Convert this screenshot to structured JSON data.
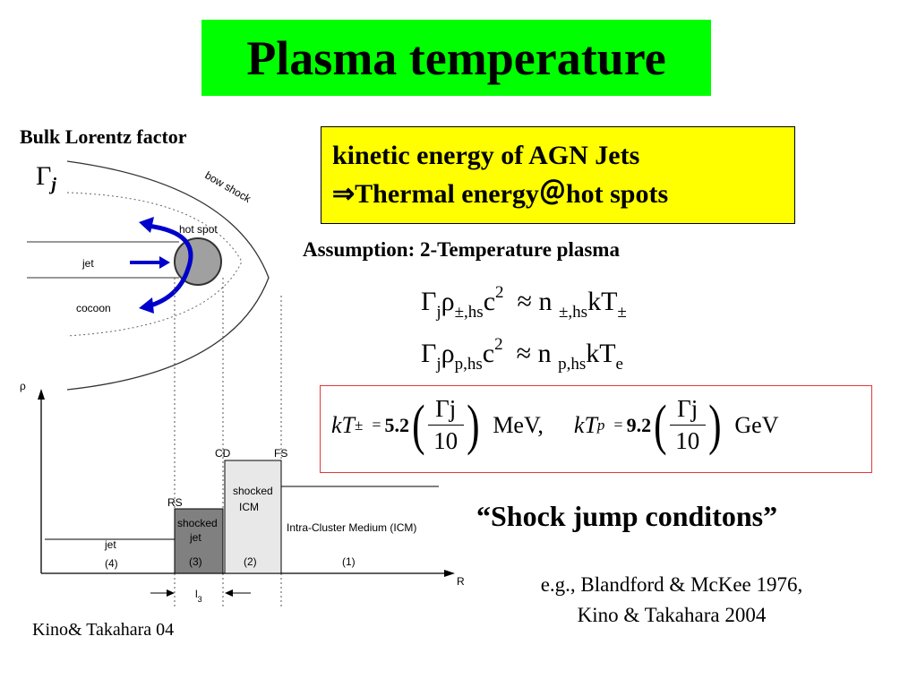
{
  "title": "Plasma temperature",
  "bulk_label": "Bulk Lorentz  factor",
  "gamma_j": {
    "gamma": "Γ",
    "sub": "j"
  },
  "yellow_box": {
    "line1": "kinetic energy of AGN Jets",
    "line2": "⇒Thermal energy＠hot spots"
  },
  "assumption": "Assumption: 2-Temperature plasma",
  "equation1": {
    "lhs": "Γ",
    "lhs_sub": "j",
    "rho": "ρ",
    "rho_sub": "±,hs",
    "c": "c",
    "c_sup": "2",
    "approx": "≈",
    "n": "n",
    "n_sub": "±,hs",
    "kT": "kT",
    "kT_sub": "±"
  },
  "equation2": {
    "lhs": "Γ",
    "lhs_sub": "j",
    "rho": "ρ",
    "rho_sub": "p,hs",
    "c": "c",
    "c_sup": "2",
    "approx": "≈",
    "n": "n",
    "n_sub": "p,hs",
    "kT": "kT",
    "kT_sub": "e"
  },
  "result": {
    "kt1_label": "kT",
    "kt1_sub": "±",
    "eq_sign": "=",
    "value1": "5.2",
    "frac_num": "Γj",
    "frac_den": "10",
    "unit1": "MeV,",
    "kt2_label": "kT",
    "kt2_sub": "p",
    "value2": "9.2",
    "unit2": "GeV"
  },
  "shock_jump": "“Shock jump conditons”",
  "reference": {
    "line1": "e.g., Blandford & McKee 1976,",
    "line2": "Kino & Takahara 2004"
  },
  "credit": "Kino& Takahara 04",
  "diagram": {
    "bow_shock": "bow shock",
    "hot_spot": "hot spot",
    "jet": "jet",
    "cocoon": "cocoon",
    "axis_rho": "ρ",
    "axis_r": "R",
    "cd": "CD",
    "fs": "FS",
    "rs": "RS",
    "shocked_icm": [
      "shocked",
      "ICM"
    ],
    "shocked_jet": [
      "shocked",
      "jet"
    ],
    "icm": "Intra-Cluster Medium (ICM)",
    "jet_region": "jet",
    "n4": "(4)",
    "n3": "(3)",
    "n2": "(2)",
    "n1": "(1)",
    "l3": "l",
    "l3_sub": "3"
  },
  "colors": {
    "title_bg": "#00ff00",
    "box_bg": "#ffff00",
    "eq_border": "#e03a3a",
    "arrow": "#0000cc",
    "hotspot": "#a0a0a0",
    "shocked_jet": "#808080",
    "shocked_icm": "#e8e8e8"
  }
}
